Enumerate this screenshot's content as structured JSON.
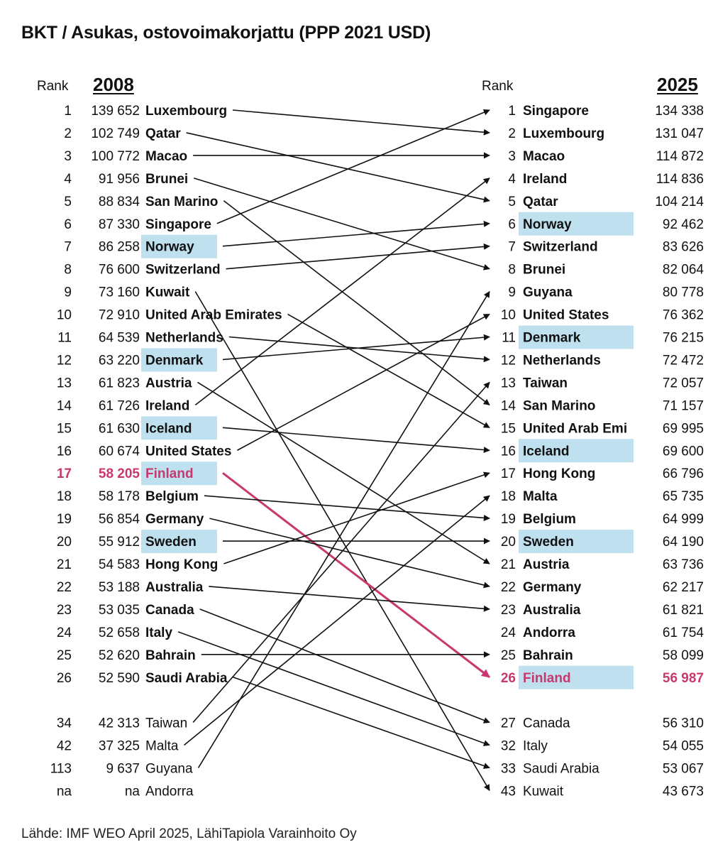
{
  "title": "BKT / Asukas, ostovoimakorjattu (PPP 2021 USD)",
  "source": "Lähde: IMF WEO April 2025, LähiTapiola Varainhoito Oy",
  "left_header": {
    "rank": "Rank",
    "year": "2008"
  },
  "right_header": {
    "rank": "Rank",
    "year": "2025"
  },
  "colors": {
    "highlight_bg": "#bfe0ee",
    "finland": "#c8386e",
    "text": "#111111",
    "arrow": "#111111"
  },
  "chart_data": {
    "type": "table",
    "left": [
      {
        "rank": "1",
        "value": "139 652",
        "country": "Luxembourg"
      },
      {
        "rank": "2",
        "value": "102 749",
        "country": "Qatar"
      },
      {
        "rank": "3",
        "value": "100 772",
        "country": "Macao"
      },
      {
        "rank": "4",
        "value": "91 956",
        "country": "Brunei"
      },
      {
        "rank": "5",
        "value": "88 834",
        "country": "San Marino"
      },
      {
        "rank": "6",
        "value": "87 330",
        "country": "Singapore"
      },
      {
        "rank": "7",
        "value": "86 258",
        "country": "Norway",
        "highlight": true
      },
      {
        "rank": "8",
        "value": "76 600",
        "country": "Switzerland"
      },
      {
        "rank": "9",
        "value": "73 160",
        "country": "Kuwait"
      },
      {
        "rank": "10",
        "value": "72 910",
        "country": "United Arab Emirates"
      },
      {
        "rank": "11",
        "value": "64 539",
        "country": "Netherlands"
      },
      {
        "rank": "12",
        "value": "63 220",
        "country": "Denmark",
        "highlight": true
      },
      {
        "rank": "13",
        "value": "61 823",
        "country": "Austria"
      },
      {
        "rank": "14",
        "value": "61 726",
        "country": "Ireland"
      },
      {
        "rank": "15",
        "value": "61 630",
        "country": "Iceland",
        "highlight": true
      },
      {
        "rank": "16",
        "value": "60 674",
        "country": "United States"
      },
      {
        "rank": "17",
        "value": "58 205",
        "country": "Finland",
        "highlight": true,
        "finland": true
      },
      {
        "rank": "18",
        "value": "58 178",
        "country": "Belgium"
      },
      {
        "rank": "19",
        "value": "56 854",
        "country": "Germany"
      },
      {
        "rank": "20",
        "value": "55 912",
        "country": "Sweden",
        "highlight": true
      },
      {
        "rank": "21",
        "value": "54 583",
        "country": "Hong Kong"
      },
      {
        "rank": "22",
        "value": "53 188",
        "country": "Australia"
      },
      {
        "rank": "23",
        "value": "53 035",
        "country": "Canada"
      },
      {
        "rank": "24",
        "value": "52 658",
        "country": "Italy"
      },
      {
        "rank": "25",
        "value": "52 620",
        "country": "Bahrain"
      },
      {
        "rank": "26",
        "value": "52 590",
        "country": "Saudi Arabia"
      },
      {
        "rank": "34",
        "value": "42 313",
        "country": "Taiwan",
        "plain": true
      },
      {
        "rank": "42",
        "value": "37 325",
        "country": "Malta",
        "plain": true
      },
      {
        "rank": "113",
        "value": "9 637",
        "country": "Guyana",
        "plain": true
      },
      {
        "rank": "na",
        "value": "na",
        "country": "Andorra",
        "plain": true
      }
    ],
    "right": [
      {
        "rank": "1",
        "value": "134 338",
        "country": "Singapore"
      },
      {
        "rank": "2",
        "value": "131 047",
        "country": "Luxembourg"
      },
      {
        "rank": "3",
        "value": "114 872",
        "country": "Macao"
      },
      {
        "rank": "4",
        "value": "114 836",
        "country": "Ireland"
      },
      {
        "rank": "5",
        "value": "104 214",
        "country": "Qatar"
      },
      {
        "rank": "6",
        "value": "92 462",
        "country": "Norway",
        "highlight": true
      },
      {
        "rank": "7",
        "value": "83 626",
        "country": "Switzerland"
      },
      {
        "rank": "8",
        "value": "82 064",
        "country": "Brunei"
      },
      {
        "rank": "9",
        "value": "80 778",
        "country": "Guyana"
      },
      {
        "rank": "10",
        "value": "76 362",
        "country": "United States"
      },
      {
        "rank": "11",
        "value": "76 215",
        "country": "Denmark",
        "highlight": true
      },
      {
        "rank": "12",
        "value": "72 472",
        "country": "Netherlands"
      },
      {
        "rank": "13",
        "value": "72 057",
        "country": "Taiwan"
      },
      {
        "rank": "14",
        "value": "71 157",
        "country": "San Marino"
      },
      {
        "rank": "15",
        "value": "69 995",
        "country": "United Arab Emi"
      },
      {
        "rank": "16",
        "value": "69 600",
        "country": "Iceland",
        "highlight": true
      },
      {
        "rank": "17",
        "value": "66 796",
        "country": "Hong Kong"
      },
      {
        "rank": "18",
        "value": "65 735",
        "country": "Malta"
      },
      {
        "rank": "19",
        "value": "64 999",
        "country": "Belgium"
      },
      {
        "rank": "20",
        "value": "64 190",
        "country": "Sweden",
        "highlight": true
      },
      {
        "rank": "21",
        "value": "63 736",
        "country": "Austria"
      },
      {
        "rank": "22",
        "value": "62 217",
        "country": "Germany"
      },
      {
        "rank": "23",
        "value": "61 821",
        "country": "Australia"
      },
      {
        "rank": "24",
        "value": "61 754",
        "country": "Andorra"
      },
      {
        "rank": "25",
        "value": "58 099",
        "country": "Bahrain"
      },
      {
        "rank": "26",
        "value": "56 987",
        "country": "Finland",
        "highlight": true,
        "finland": true
      },
      {
        "rank": "27",
        "value": "56 310",
        "country": "Canada",
        "plain": true
      },
      {
        "rank": "32",
        "value": "54 055",
        "country": "Italy",
        "plain": true
      },
      {
        "rank": "33",
        "value": "53 067",
        "country": "Saudi Arabia",
        "plain": true
      },
      {
        "rank": "43",
        "value": "43 673",
        "country": "Kuwait",
        "plain": true
      }
    ],
    "links": [
      [
        "Luxembourg",
        "Luxembourg"
      ],
      [
        "Qatar",
        "Qatar"
      ],
      [
        "Macao",
        "Macao"
      ],
      [
        "Brunei",
        "Brunei"
      ],
      [
        "San Marino",
        "San Marino"
      ],
      [
        "Singapore",
        "Singapore"
      ],
      [
        "Norway",
        "Norway"
      ],
      [
        "Switzerland",
        "Switzerland"
      ],
      [
        "Kuwait",
        "Kuwait"
      ],
      [
        "United Arab Emirates",
        "United Arab Emi"
      ],
      [
        "Netherlands",
        "Netherlands"
      ],
      [
        "Denmark",
        "Denmark"
      ],
      [
        "Austria",
        "Austria"
      ],
      [
        "Ireland",
        "Ireland"
      ],
      [
        "Iceland",
        "Iceland"
      ],
      [
        "United States",
        "United States"
      ],
      [
        "Finland",
        "Finland"
      ],
      [
        "Belgium",
        "Belgium"
      ],
      [
        "Germany",
        "Germany"
      ],
      [
        "Sweden",
        "Sweden"
      ],
      [
        "Hong Kong",
        "Hong Kong"
      ],
      [
        "Australia",
        "Australia"
      ],
      [
        "Canada",
        "Canada"
      ],
      [
        "Italy",
        "Italy"
      ],
      [
        "Bahrain",
        "Bahrain"
      ],
      [
        "Saudi Arabia",
        "Saudi Arabia"
      ],
      [
        "Taiwan",
        "Taiwan"
      ],
      [
        "Malta",
        "Malta"
      ],
      [
        "Guyana",
        "Guyana"
      ]
    ]
  }
}
